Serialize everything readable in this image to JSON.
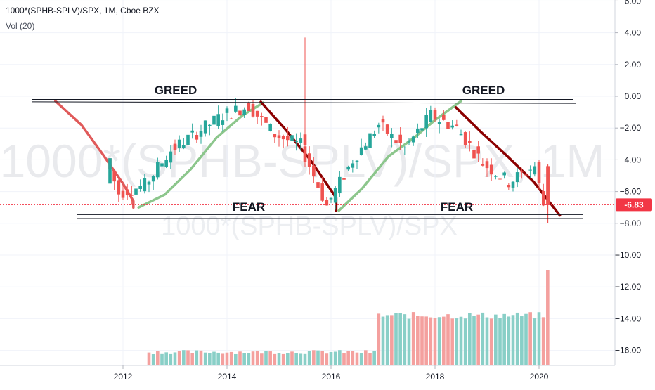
{
  "header": {
    "symbol_line": "1000*(SPHB-SPLV)/SPX, 1M, Cboe BZX",
    "volume_indicator": "Vol (20)"
  },
  "watermark": {
    "large": "1000*(SPHB-SPLV)/SPX, 1M",
    "small": "1000*(SPHB-SPLV)/SPX"
  },
  "annotations": {
    "greed_left": "GREED",
    "greed_right": "GREED",
    "fear_left": "FEAR",
    "fear_right": "FEAR"
  },
  "price_label": "-6.83",
  "colors": {
    "up": "#26a69a",
    "down": "#ef5350",
    "vol_up": "#89cfc7",
    "vol_down": "#f4a09e",
    "red_trend": "#e05a5a",
    "dark_trend": "#8b0000",
    "green_trend": "#8cc68c",
    "price_tag": "#f23645"
  },
  "chart_data": {
    "type": "candlestick",
    "x_ticks": [
      "2012",
      "2014",
      "2016",
      "2018",
      "2020"
    ],
    "y_ticks": [
      "6.00",
      "4.00",
      "2.00",
      "0.00",
      "−2.00",
      "−4.00",
      "−6.00",
      "−8.00",
      "−10.00",
      "−12.00",
      "−14.00",
      "−16.00"
    ],
    "y_range": [
      -17,
      6
    ],
    "last_value": -6.83,
    "greed_level": -0.2,
    "fear_level": -7.6,
    "series": [
      {
        "t": 2011.75,
        "o": -5.5,
        "h": 3.2,
        "l": -7.3,
        "c": -3.9
      },
      {
        "t": 2012.0,
        "o": -3.9,
        "h": -2.8,
        "l": -6.6,
        "c": -6.1
      },
      {
        "t": 2012.5,
        "o": -6.1,
        "h": -5.2,
        "l": -7.0,
        "c": -5.6
      },
      {
        "t": 2013.0,
        "o": -5.6,
        "h": -3.0,
        "l": -6.0,
        "c": -3.4
      },
      {
        "t": 2013.5,
        "o": -3.4,
        "h": -1.8,
        "l": -4.0,
        "c": -2.3
      },
      {
        "t": 2014.0,
        "o": -2.3,
        "h": -0.8,
        "l": -2.8,
        "c": -1.2
      },
      {
        "t": 2014.5,
        "o": -1.2,
        "h": -0.3,
        "l": -1.8,
        "c": -0.6
      },
      {
        "t": 2015.0,
        "o": -0.6,
        "h": 0.2,
        "l": -2.8,
        "c": -2.4
      },
      {
        "t": 2015.5,
        "o": -2.4,
        "h": 3.7,
        "l": -3.6,
        "c": -3.1
      },
      {
        "t": 2016.0,
        "o": -3.1,
        "h": -2.7,
        "l": -7.2,
        "c": -6.9
      },
      {
        "t": 2016.5,
        "o": -6.9,
        "h": -3.5,
        "l": -7.0,
        "c": -4.0
      },
      {
        "t": 2017.0,
        "o": -4.0,
        "h": -1.2,
        "l": -4.3,
        "c": -1.8
      },
      {
        "t": 2017.5,
        "o": -1.8,
        "h": -1.5,
        "l": -3.8,
        "c": -3.3
      },
      {
        "t": 2018.0,
        "o": -3.3,
        "h": -0.8,
        "l": -3.7,
        "c": -1.2
      },
      {
        "t": 2018.5,
        "o": -1.2,
        "h": -0.6,
        "l": -2.4,
        "c": -2.0
      },
      {
        "t": 2019.0,
        "o": -2.0,
        "h": -1.6,
        "l": -5.0,
        "c": -4.2
      },
      {
        "t": 2019.5,
        "o": -4.2,
        "h": -3.5,
        "l": -6.3,
        "c": -5.4
      },
      {
        "t": 2020.0,
        "o": -4.2,
        "h": -3.3,
        "l": -5.0,
        "c": -4.4
      },
      {
        "t": 2020.17,
        "o": -4.4,
        "h": -4.3,
        "l": -8.0,
        "c": -6.83
      }
    ],
    "volume": [
      {
        "t": 2012.5,
        "v": 1.0
      },
      {
        "t": 2013.5,
        "v": 0.9
      },
      {
        "t": 2014.5,
        "v": 0.9
      },
      {
        "t": 2015.5,
        "v": 1.0
      },
      {
        "t": 2016.5,
        "v": 0.8
      },
      {
        "t": 2017.0,
        "v": 3.3
      },
      {
        "t": 2018.0,
        "v": 3.5
      },
      {
        "t": 2019.0,
        "v": 3.4
      },
      {
        "t": 2020.0,
        "v": 3.6
      },
      {
        "t": 2020.17,
        "v": 6.8
      }
    ]
  }
}
